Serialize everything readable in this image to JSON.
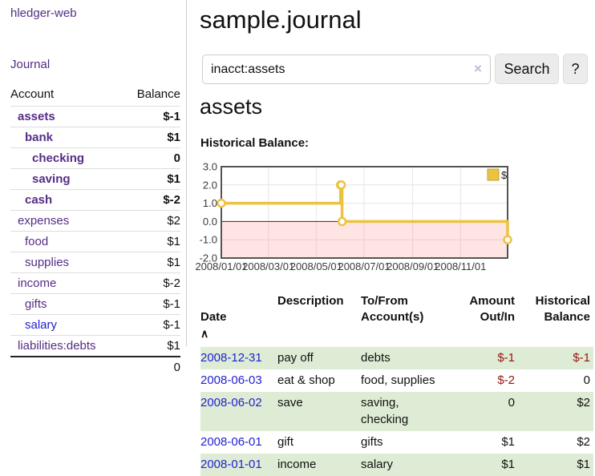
{
  "sidebar": {
    "brand": "hledger-web",
    "journal_link": "Journal",
    "table_headers": [
      "Account",
      "Balance"
    ],
    "accounts": [
      {
        "name": "assets",
        "level": 1,
        "bold": true,
        "link_color": "purple",
        "balance": "$-1",
        "balance_style": "neg-strong"
      },
      {
        "name": "bank",
        "level": 2,
        "bold": true,
        "link_color": "purple",
        "balance": "$1",
        "balance_style": "plain"
      },
      {
        "name": "checking",
        "level": 3,
        "bold": true,
        "link_color": "purple",
        "balance": "0",
        "balance_style": "plain"
      },
      {
        "name": "saving",
        "level": 3,
        "bold": true,
        "link_color": "purple",
        "balance": "$1",
        "balance_style": "plain"
      },
      {
        "name": "cash",
        "level": 2,
        "bold": true,
        "link_color": "purple",
        "balance": "$-2",
        "balance_style": "neg-strong"
      },
      {
        "name": "expenses",
        "level": 1,
        "bold": false,
        "link_color": "purple",
        "balance": "$2",
        "balance_style": "plain"
      },
      {
        "name": "food",
        "level": 2,
        "bold": false,
        "link_color": "purple",
        "balance": "$1",
        "balance_style": "plain"
      },
      {
        "name": "supplies",
        "level": 2,
        "bold": false,
        "link_color": "purple",
        "balance": "$1",
        "balance_style": "plain"
      },
      {
        "name": "income",
        "level": 1,
        "bold": false,
        "link_color": "purple",
        "balance": "$-2",
        "balance_style": "neg-soft"
      },
      {
        "name": "gifts",
        "level": 2,
        "bold": false,
        "link_color": "purple",
        "balance": "$-1",
        "balance_style": "neg-soft"
      },
      {
        "name": "salary",
        "level": 2,
        "bold": false,
        "link_color": "blue",
        "balance": "$-1",
        "balance_style": "neg-soft"
      },
      {
        "name": "liabilities:debts",
        "level": 1,
        "bold": false,
        "link_color": "purple",
        "balance": "$1",
        "balance_style": "plain"
      }
    ],
    "total": "0"
  },
  "main": {
    "title": "sample.journal",
    "search": {
      "value": "inacct:assets",
      "clear_icon": "×",
      "search_button": "Search",
      "help_button": "?"
    },
    "account_heading": "assets",
    "chart_heading": "Historical Balance:"
  },
  "chart_data": {
    "type": "line",
    "step": true,
    "title": "Historical Balance:",
    "series": [
      {
        "name": "$",
        "color": "#edc240",
        "points": [
          [
            "2008-01-01",
            1
          ],
          [
            "2008-06-01",
            2
          ],
          [
            "2008-06-02",
            2
          ],
          [
            "2008-06-03",
            0
          ],
          [
            "2008-12-31",
            -1
          ]
        ]
      }
    ],
    "xlim": [
      "2008-01-01",
      "2008-12-31"
    ],
    "ylim": [
      -2,
      3
    ],
    "yticks": [
      {
        "value": 3,
        "label": "3.0"
      },
      {
        "value": 2,
        "label": "2.0"
      },
      {
        "value": 1,
        "label": "1.0"
      },
      {
        "value": 0,
        "label": "0.0"
      },
      {
        "value": -1,
        "label": "-1.0"
      },
      {
        "value": -2,
        "label": "-2.0"
      }
    ],
    "xticks": [
      {
        "date": "2008-01-01",
        "label": "2008/01/01"
      },
      {
        "date": "2008-03-01",
        "label": "2008/03/01"
      },
      {
        "date": "2008-05-01",
        "label": "2008/05/01"
      },
      {
        "date": "2008-07-01",
        "label": "2008/07/01"
      },
      {
        "date": "2008-09-01",
        "label": "2008/09/01"
      },
      {
        "date": "2008-11-01",
        "label": "2008/11/01"
      }
    ],
    "legend": {
      "label": "$",
      "position": "top-right"
    },
    "grid": true,
    "negative_region_fill": "#ff6b6b",
    "zero_line_color": "#8b0000"
  },
  "register": {
    "columns": [
      {
        "label": "Date",
        "sort_icon": "∧",
        "align": "left"
      },
      {
        "label": "Description",
        "align": "left"
      },
      {
        "label": "To/From\nAccount(s)",
        "align": "left"
      },
      {
        "label": "Amount\nOut/In",
        "align": "right"
      },
      {
        "label": "Historical\nBalance",
        "align": "right"
      }
    ],
    "rows": [
      {
        "date": "2008-12-31",
        "description": "pay off",
        "accounts": "debts",
        "amount": "$-1",
        "amount_negative": true,
        "balance": "$-1",
        "balance_negative": true
      },
      {
        "date": "2008-06-03",
        "description": "eat & shop",
        "accounts": "food, supplies",
        "amount": "$-2",
        "amount_negative": true,
        "balance": "0",
        "balance_negative": false
      },
      {
        "date": "2008-06-02",
        "description": "save",
        "accounts": "saving,\nchecking",
        "amount": "0",
        "amount_negative": false,
        "balance": "$2",
        "balance_negative": false
      },
      {
        "date": "2008-06-01",
        "description": "gift",
        "accounts": "gifts",
        "amount": "$1",
        "amount_negative": false,
        "balance": "$2",
        "balance_negative": false
      },
      {
        "date": "2008-01-01",
        "description": "income",
        "accounts": "salary",
        "amount": "$1",
        "amount_negative": false,
        "balance": "$1",
        "balance_negative": false
      }
    ]
  },
  "colors": {
    "purple_link": "#542d85",
    "blue_link": "#2222cf",
    "negative_strong": "#971414",
    "negative_soft": "#bd6d6d",
    "row_green": "#deecd5",
    "clear_icon": "#c7b6db",
    "chart_line": "#edc240",
    "chart_zero_line": "#8b0000",
    "chart_border": "#545454",
    "gridline": "#e6e6e6"
  }
}
